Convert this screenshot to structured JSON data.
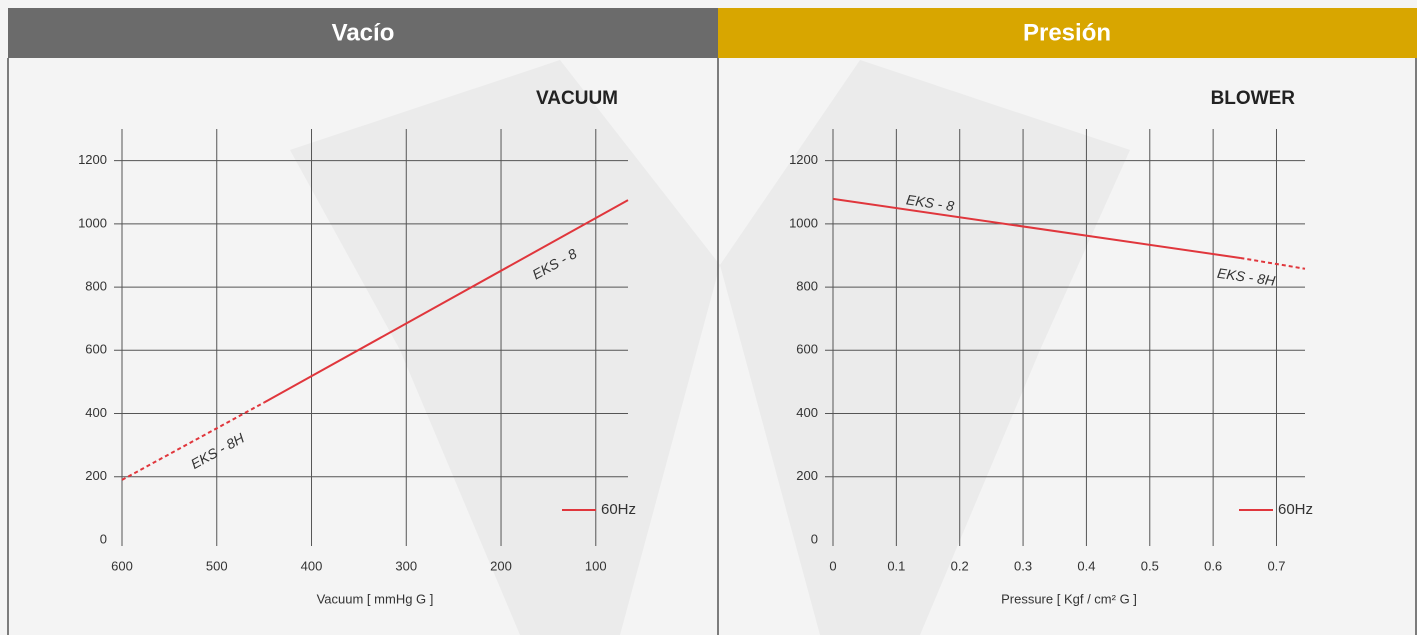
{
  "headers": [
    "Vacío",
    "Presión"
  ],
  "chart_data": [
    {
      "type": "line",
      "title": "VACUUM",
      "xlabel": "Vacuum [ mmHg G ]",
      "legend_label": "60Hz",
      "xlim": [
        600,
        66
      ],
      "xticks": [
        600,
        500,
        400,
        300,
        200,
        100
      ],
      "ylim": [
        0,
        1300
      ],
      "yticks": [
        0,
        200,
        400,
        600,
        800,
        1000,
        1200
      ],
      "grid": true,
      "series": [
        {
          "name": "EKS - 8",
          "color": "#e0363c",
          "dash": false,
          "x": [
            450,
            66
          ],
          "values": [
            435,
            1075
          ]
        },
        {
          "name": "EKS - 8H",
          "color": "#e0363c",
          "dash": true,
          "x": [
            600,
            450
          ],
          "values": [
            190,
            435
          ]
        }
      ]
    },
    {
      "type": "line",
      "title": "BLOWER",
      "xlabel": "Pressure [ Kgf / cm² G ]",
      "legend_label": "60Hz",
      "xlim": [
        0,
        0.745
      ],
      "xticks": [
        0,
        0.1,
        0.2,
        0.3,
        0.4,
        0.5,
        0.6,
        0.7
      ],
      "ylim": [
        0,
        1300
      ],
      "yticks": [
        0,
        200,
        400,
        600,
        800,
        1000,
        1200
      ],
      "grid": true,
      "series": [
        {
          "name": "EKS - 8",
          "color": "#e0363c",
          "dash": false,
          "x": [
            0,
            0.643
          ],
          "values": [
            1079,
            892
          ]
        },
        {
          "name": "EKS - 8H",
          "color": "#e0363c",
          "dash": true,
          "x": [
            0.643,
            0.745
          ],
          "values": [
            892,
            858
          ]
        }
      ]
    }
  ]
}
